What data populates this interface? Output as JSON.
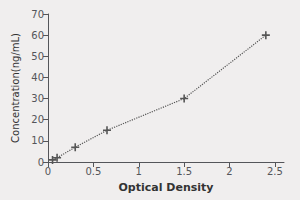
{
  "chart_data": {
    "type": "line",
    "x": [
      0.05,
      0.1,
      0.3,
      0.65,
      1.5,
      2.4
    ],
    "values": [
      1,
      2,
      7,
      15,
      30,
      60
    ],
    "xlabel": "Optical Density",
    "ylabel": "Concentration(ng/mL)",
    "xlim": [
      0,
      2.6
    ],
    "ylim": [
      0,
      70
    ],
    "xticks": [
      0,
      0.5,
      1,
      1.5,
      2,
      2.5
    ],
    "yticks": [
      0,
      10,
      20,
      30,
      40,
      50,
      60,
      70
    ],
    "color": "#555555",
    "marker": "plus",
    "line_style": "dotted",
    "grid": false
  }
}
